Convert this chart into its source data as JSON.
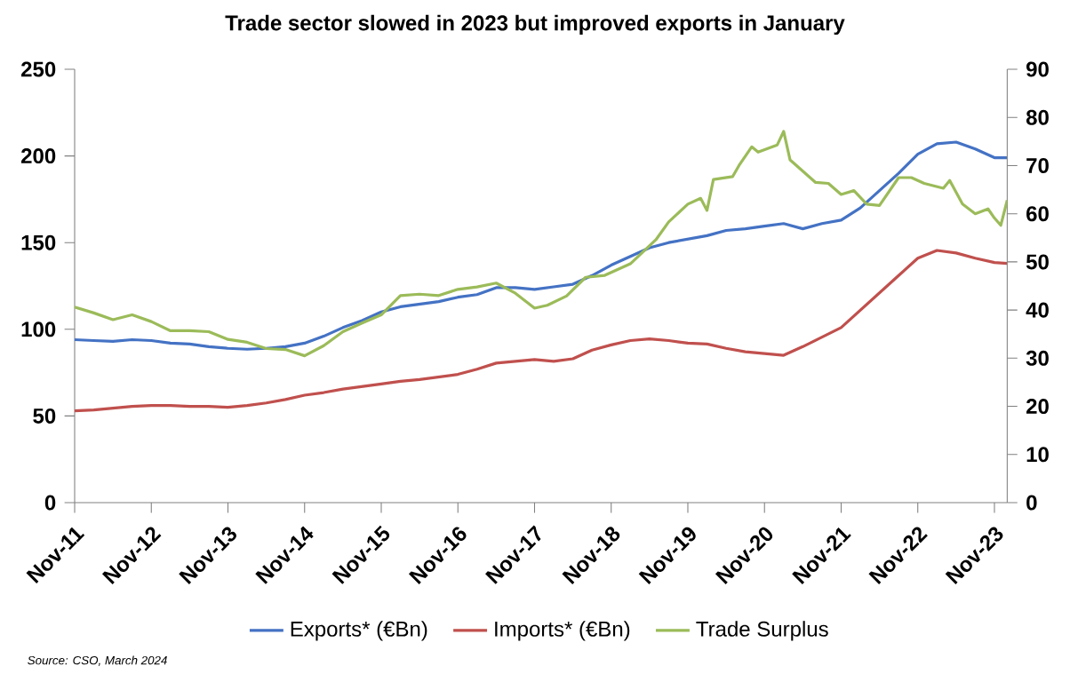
{
  "chart_data": {
    "type": "line",
    "title": "Trade sector slowed in 2023 but improved exports in January",
    "x": [
      "2011-11",
      "2012-02",
      "2012-05",
      "2012-08",
      "2012-11",
      "2013-02",
      "2013-05",
      "2013-08",
      "2013-11",
      "2014-02",
      "2014-05",
      "2014-08",
      "2014-11",
      "2015-02",
      "2015-05",
      "2015-08",
      "2015-11",
      "2016-02",
      "2016-05",
      "2016-08",
      "2016-11",
      "2017-02",
      "2017-05",
      "2017-08",
      "2017-11",
      "2018-02",
      "2018-05",
      "2018-08",
      "2018-11",
      "2019-02",
      "2019-05",
      "2019-08",
      "2019-11",
      "2020-02",
      "2020-05",
      "2020-08",
      "2020-11",
      "2021-02",
      "2021-05",
      "2021-08",
      "2021-11",
      "2022-02",
      "2022-05",
      "2022-08",
      "2022-11",
      "2023-02",
      "2023-05",
      "2023-08",
      "2023-11",
      "2024-01"
    ],
    "series": [
      {
        "name": "Exports* (€Bn)",
        "color": "#4472c4",
        "values": [
          94,
          93.5,
          93,
          94,
          93.5,
          92,
          91.5,
          90,
          89,
          88.5,
          89,
          90,
          92,
          96,
          101,
          105,
          110,
          113,
          114.5,
          116,
          118.5,
          120,
          124,
          124,
          123,
          124.5,
          126,
          131,
          137,
          142,
          147,
          150,
          152,
          154,
          157,
          158,
          159.5,
          161,
          158,
          161,
          163,
          170,
          180,
          190,
          201,
          207,
          208,
          204,
          199,
          199
        ]
      },
      {
        "name": "Imports* (€Bn)",
        "color": "#c0504d",
        "values": [
          53,
          53.5,
          54.5,
          55.5,
          56,
          56,
          55.5,
          55.5,
          55,
          56,
          57.5,
          59.5,
          62,
          63.5,
          65.5,
          67,
          68.5,
          70,
          71,
          72.5,
          74,
          77,
          80.5,
          81.5,
          82.5,
          81.5,
          83,
          88,
          91,
          93.5,
          94.5,
          93.5,
          92,
          91.5,
          89,
          87,
          86,
          85,
          90,
          95.5,
          101,
          111,
          121,
          131,
          141,
          145.5,
          144,
          141,
          138.5,
          138
        ]
      },
      {
        "name": "Trade Surplus",
        "color": "#9bbb59",
        "axis": "y2",
        "x": [
          "2011-11",
          "2012-02",
          "2012-05",
          "2012-08",
          "2012-11",
          "2013-02",
          "2013-05",
          "2013-08",
          "2013-11",
          "2014-02",
          "2014-05",
          "2014-08",
          "2014-11",
          "2015-02",
          "2015-05",
          "2015-08",
          "2015-11",
          "2016-02",
          "2016-05",
          "2016-08",
          "2016-11",
          "2017-02",
          "2017-05",
          "2017-08",
          "2017-11",
          "2018-01",
          "2018-04",
          "2018-07",
          "2018-10",
          "2019-02",
          "2019-06",
          "2019-08",
          "2019-11",
          "2020-01",
          "2020-02",
          "2020-03",
          "2020-06",
          "2020-07",
          "2020-09",
          "2020-10",
          "2021-01",
          "2021-02",
          "2021-03",
          "2021-07",
          "2021-09",
          "2021-11",
          "2022-01",
          "2022-03",
          "2022-05",
          "2022-08",
          "2022-10",
          "2022-12",
          "2023-03",
          "2023-04",
          "2023-06",
          "2023-08",
          "2023-10",
          "2023-11",
          "2023-12",
          "2024-01"
        ],
        "values": [
          40.6,
          39.4,
          38,
          39,
          37.6,
          35.7,
          35.7,
          35.5,
          33.9,
          33.3,
          32,
          31.8,
          30.5,
          32.6,
          35.5,
          37.3,
          39,
          43,
          43.3,
          43,
          44.3,
          44.8,
          45.6,
          43.5,
          40.4,
          41,
          42.9,
          46.8,
          47.2,
          49.6,
          54.6,
          58.3,
          62,
          63.2,
          60.7,
          67.1,
          67.7,
          70,
          73.9,
          72.8,
          74.3,
          77.1,
          71.2,
          66.5,
          66.3,
          64,
          64.8,
          62,
          61.7,
          67.5,
          67.5,
          66.3,
          65.3,
          66.9,
          62,
          60,
          61,
          59.1,
          57.6,
          62.8
        ]
      }
    ],
    "xlim": [
      "2011-11",
      "2024-01"
    ],
    "xticks": [
      {
        "value": "2011-11",
        "label": "Nov-11"
      },
      {
        "value": "2012-11",
        "label": "Nov-12"
      },
      {
        "value": "2013-11",
        "label": "Nov-13"
      },
      {
        "value": "2014-11",
        "label": "Nov-14"
      },
      {
        "value": "2015-11",
        "label": "Nov-15"
      },
      {
        "value": "2016-11",
        "label": "Nov-16"
      },
      {
        "value": "2017-11",
        "label": "Nov-17"
      },
      {
        "value": "2018-11",
        "label": "Nov-18"
      },
      {
        "value": "2019-11",
        "label": "Nov-19"
      },
      {
        "value": "2020-11",
        "label": "Nov-20"
      },
      {
        "value": "2021-11",
        "label": "Nov-21"
      },
      {
        "value": "2022-11",
        "label": "Nov-22"
      },
      {
        "value": "2023-11",
        "label": "Nov-23"
      }
    ],
    "ylim": [
      0,
      250
    ],
    "yticks": [
      0,
      50,
      100,
      150,
      200,
      250
    ],
    "y2lim": [
      0,
      90
    ],
    "y2ticks": [
      0,
      10,
      20,
      30,
      40,
      50,
      60,
      70,
      80,
      90
    ],
    "grid": false,
    "legend": "bottom",
    "marker": "none",
    "line_style": "solid",
    "annotations": [
      "Source: CSO, March 2024"
    ]
  }
}
